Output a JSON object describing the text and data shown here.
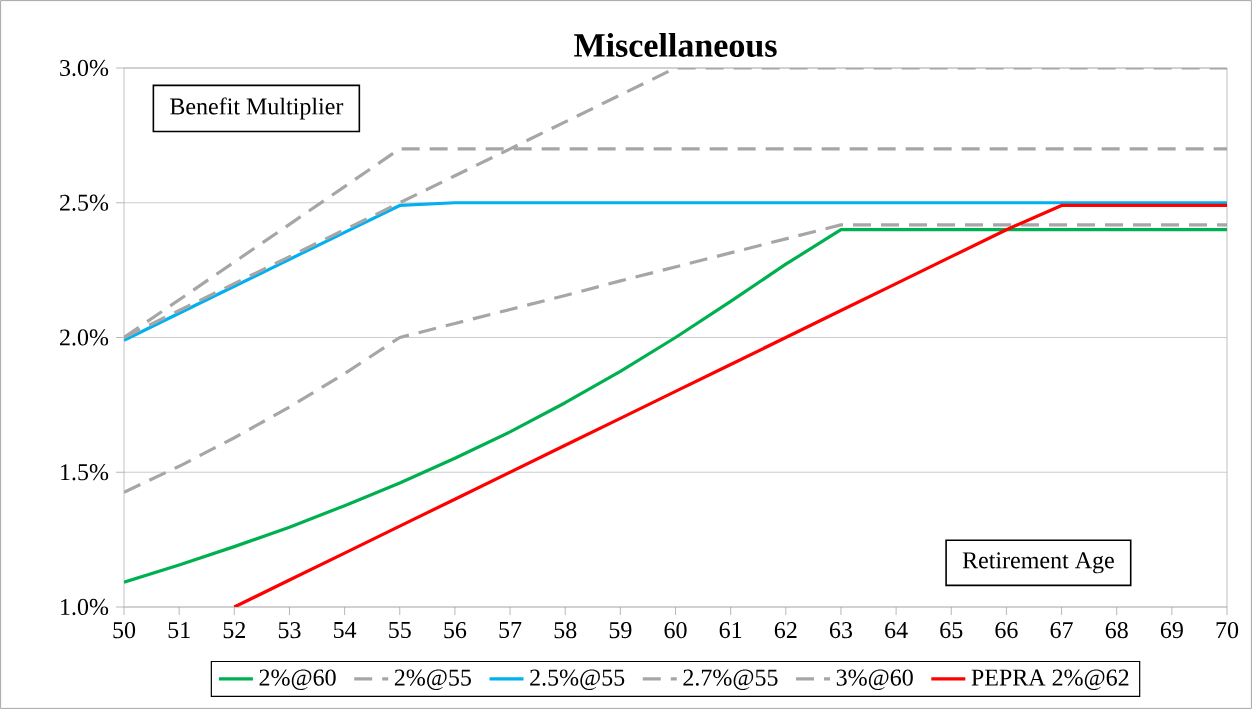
{
  "chart_data": {
    "type": "line",
    "title": "Miscellaneous",
    "xlabel": "Retirement Age",
    "ylabel": "Benefit Multiplier",
    "x": [
      50,
      51,
      52,
      53,
      54,
      55,
      56,
      57,
      58,
      59,
      60,
      61,
      62,
      63,
      64,
      65,
      66,
      67,
      68,
      69,
      70
    ],
    "series": [
      {
        "name": "2%@60",
        "color": "#00b050",
        "line_style": "solid",
        "values": [
          1.092,
          1.156,
          1.224,
          1.296,
          1.376,
          1.46,
          1.552,
          1.65,
          1.758,
          1.874,
          2.0,
          2.134,
          2.272,
          2.4,
          2.4,
          2.4,
          2.4,
          2.4,
          2.4,
          2.4,
          2.4
        ]
      },
      {
        "name": "2%@55",
        "color": "#a6a6a6",
        "line_style": "dashed",
        "values": [
          1.426,
          1.522,
          1.628,
          1.742,
          1.866,
          2.0,
          2.052,
          2.104,
          2.156,
          2.21,
          2.262,
          2.314,
          2.366,
          2.418,
          2.418,
          2.418,
          2.418,
          2.418,
          2.418,
          2.418,
          2.418
        ]
      },
      {
        "name": "2.5%@55",
        "color": "#00b0f0",
        "line_style": "solid",
        "values": [
          1.99,
          2.09,
          2.19,
          2.29,
          2.39,
          2.49,
          2.5,
          2.5,
          2.5,
          2.5,
          2.5,
          2.5,
          2.5,
          2.5,
          2.5,
          2.5,
          2.5,
          2.5,
          2.5,
          2.5,
          2.5
        ]
      },
      {
        "name": "2.7%@55",
        "color": "#a6a6a6",
        "line_style": "dashed",
        "values": [
          2.0,
          2.14,
          2.28,
          2.42,
          2.56,
          2.7,
          2.7,
          2.7,
          2.7,
          2.7,
          2.7,
          2.7,
          2.7,
          2.7,
          2.7,
          2.7,
          2.7,
          2.7,
          2.7,
          2.7,
          2.7
        ]
      },
      {
        "name": "3%@60",
        "color": "#a6a6a6",
        "line_style": "dashed",
        "values": [
          2.0,
          2.1,
          2.2,
          2.3,
          2.4,
          2.5,
          2.6,
          2.7,
          2.8,
          2.9,
          3.0,
          3.0,
          3.0,
          3.0,
          3.0,
          3.0,
          3.0,
          3.0,
          3.0,
          3.0,
          3.0
        ]
      },
      {
        "name": "PEPRA 2%@62",
        "color": "#ff0000",
        "line_style": "solid",
        "values": [
          null,
          null,
          1.0,
          1.1,
          1.2,
          1.3,
          1.4,
          1.5,
          1.6,
          1.7,
          1.8,
          1.9,
          2.0,
          2.1,
          2.2,
          2.3,
          2.4,
          2.49,
          2.49,
          2.49,
          2.49
        ]
      }
    ],
    "xlim": [
      50,
      70
    ],
    "xticks": [
      50,
      51,
      52,
      53,
      54,
      55,
      56,
      57,
      58,
      59,
      60,
      61,
      62,
      63,
      64,
      65,
      66,
      67,
      68,
      69,
      70
    ],
    "ylim": [
      1.0,
      3.0
    ],
    "yticks": [
      {
        "value": 1.0,
        "label": "1.0%"
      },
      {
        "value": 1.5,
        "label": "1.5%"
      },
      {
        "value": 2.0,
        "label": "2.0%"
      },
      {
        "value": 2.5,
        "label": "2.5%"
      },
      {
        "value": 3.0,
        "label": "3.0%"
      }
    ],
    "grid": "y",
    "legend": "bottom",
    "marker": "none"
  }
}
